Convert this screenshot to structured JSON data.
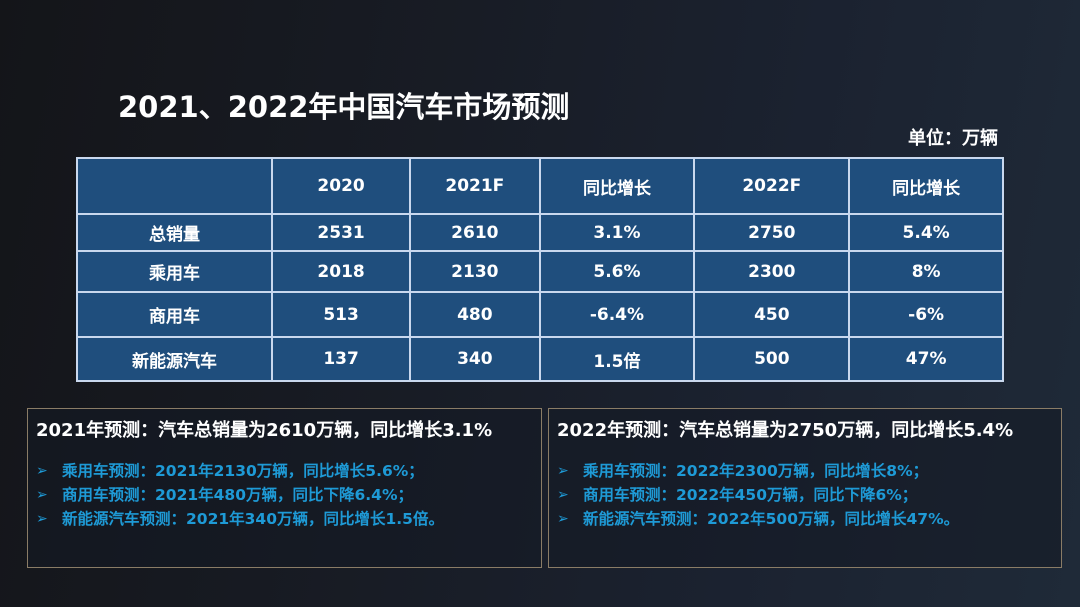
{
  "slide": {
    "title": "2021、2022年中国汽车市场预测",
    "unit_label": "单位：万辆"
  },
  "table": {
    "headers": [
      "",
      "2020",
      "2021F",
      "同比增长",
      "2022F",
      "同比增长"
    ],
    "rows": [
      [
        "总销量",
        "2531",
        "2610",
        "3.1%",
        "2750",
        "5.4%"
      ],
      [
        "乘用车",
        "2018",
        "2130",
        "5.6%",
        "2300",
        "8%"
      ],
      [
        "商用车",
        "513",
        "480",
        "-6.4%",
        "450",
        "-6%"
      ],
      [
        "新能源汽车",
        "137",
        "340",
        "1.5倍",
        "500",
        "47%"
      ]
    ]
  },
  "summaries": [
    {
      "headline": "2021年预测：汽车总销量为2610万辆，同比增长3.1%",
      "bullet_icon": "➢",
      "bullets": [
        "乘用车预测：2021年2130万辆，同比增长5.6%；",
        "商用车预测：2021年480万辆，同比下降6.4%；",
        "新能源汽车预测：2021年340万辆，同比增长1.5倍。"
      ]
    },
    {
      "headline": "2022年预测：汽车总销量为2750万辆，同比增长5.4%",
      "bullet_icon": "➢",
      "bullets": [
        "乘用车预测：2022年2300万辆，同比增长8%；",
        "商用车预测：2022年450万辆，同比下降6%；",
        "新能源汽车预测：2022年500万辆，同比增长47%。"
      ]
    }
  ],
  "colors": {
    "table_fill": "#1f4e7d",
    "table_border": "#c9d8ee",
    "bullet_text": "#1e9ad6",
    "box_border": "#8a7c66"
  }
}
